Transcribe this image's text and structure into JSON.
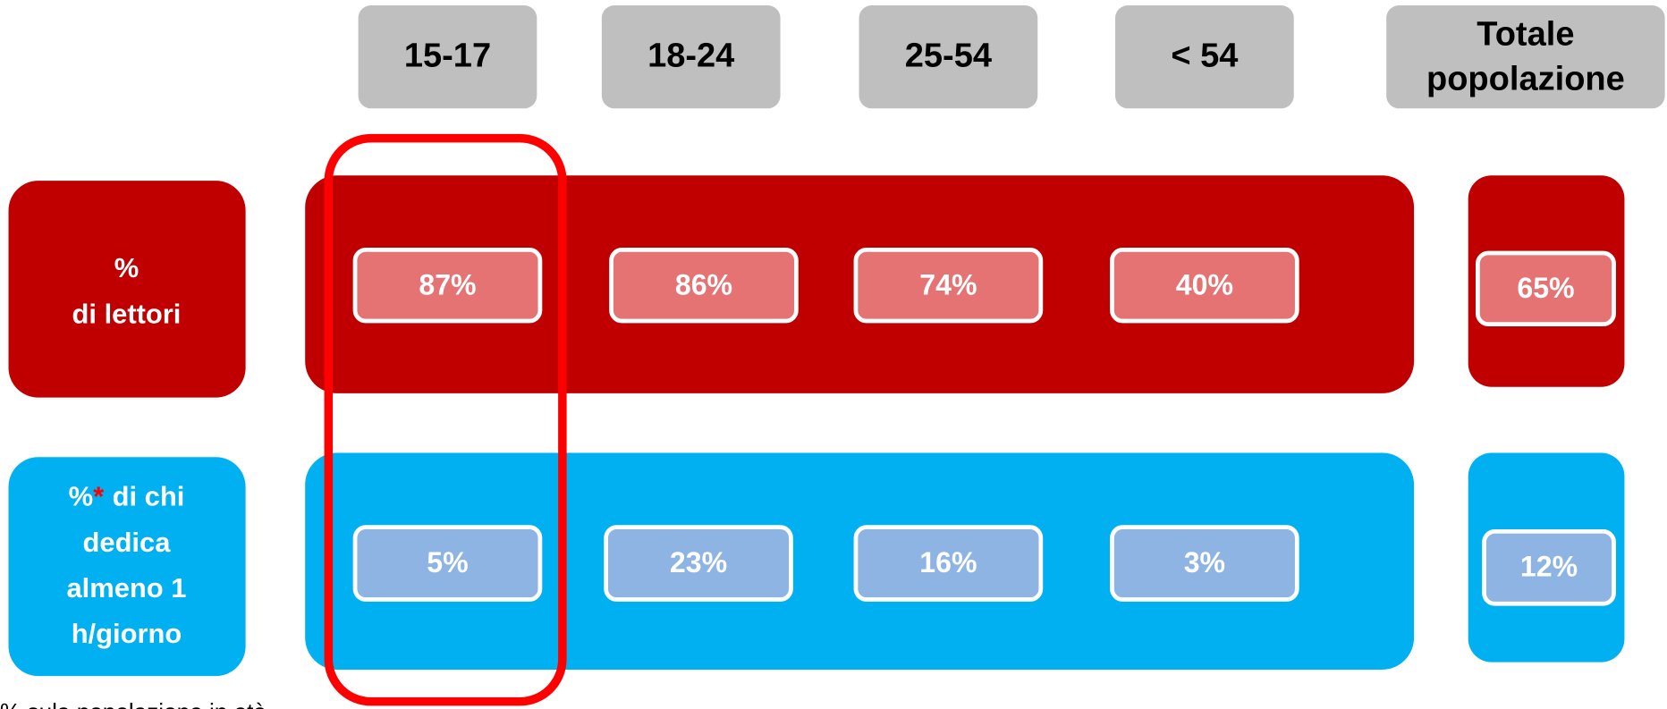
{
  "header": {
    "columns": [
      "15-17",
      "18-24",
      "25-54",
      "< 54"
    ],
    "total": [
      "Totale",
      "popolazione"
    ]
  },
  "rows": [
    {
      "label": [
        "%",
        "di lettori"
      ],
      "values": [
        "87%",
        "86%",
        "74%",
        "40%"
      ],
      "total": "65%"
    },
    {
      "label": {
        "first": [
          "%",
          "*",
          "di chi"
        ],
        "rest": [
          "dedica",
          "almeno 1",
          "h/giorno"
        ]
      },
      "values": [
        "5%",
        "23%",
        "16%",
        "3%"
      ],
      "total": "12%"
    }
  ],
  "footnote": "% sula popolazione in età"
}
